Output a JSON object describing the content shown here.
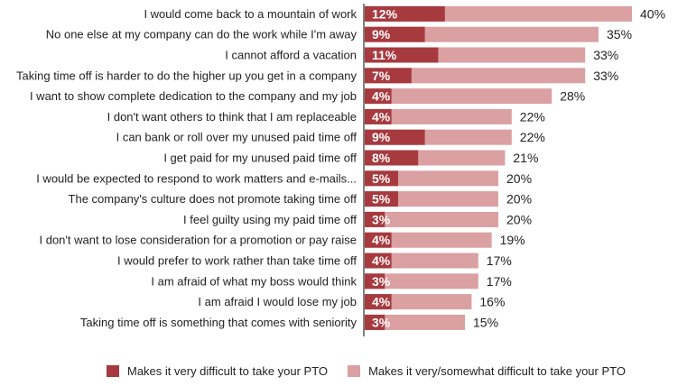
{
  "chart_data": {
    "type": "bar",
    "orientation": "horizontal",
    "stacked": "overlay",
    "categories": [
      "I would come back to a mountain of work",
      "No one else at my company can do the work while I'm away",
      "I cannot afford a vacation",
      "Taking time off is harder to do the higher up you get in a company",
      "I want to show complete dedication to the company and my job",
      "I don't want others to think that I am replaceable",
      "I can bank or roll over my unused paid time off",
      "I get paid for my unused paid time off",
      "I would be expected to respond to work matters and e-mails...",
      "The company's culture does not promote taking time off",
      "I feel guilty using my paid time off",
      "I don't want to lose consideration for a promotion or pay raise",
      "I would prefer to work rather than take time off",
      "I am afraid of what my boss would think",
      "I am afraid I would lose my job",
      "Taking time off is something that comes with seniority"
    ],
    "series": [
      {
        "name": "Makes it very difficult to take your PTO",
        "values": [
          12,
          9,
          11,
          7,
          4,
          4,
          9,
          8,
          5,
          5,
          3,
          4,
          4,
          3,
          4,
          3
        ],
        "labels": [
          "12%",
          "9%",
          "11%",
          "7%",
          "4%",
          "4%",
          "9%",
          "8%",
          "5%",
          "5%",
          "3%",
          "4%",
          "4%",
          "3%",
          "4%",
          "3%"
        ],
        "color": "#a63a3f"
      },
      {
        "name": "Makes it very/somewhat difficult to take your PTO",
        "values": [
          40,
          35,
          33,
          33,
          28,
          22,
          22,
          21,
          20,
          20,
          20,
          19,
          17,
          17,
          16,
          15
        ],
        "labels": [
          "40%",
          "35%",
          "33%",
          "33%",
          "28%",
          "22%",
          "22%",
          "21%",
          "20%",
          "20%",
          "20%",
          "19%",
          "17%",
          "17%",
          "16%",
          "15%"
        ],
        "color": "#dba0a2"
      }
    ],
    "xlim": [
      0,
      40
    ],
    "grid": false,
    "legend": "bottom"
  },
  "colors": {
    "axis": "#000000",
    "inner_label": "#ffffff",
    "text": "#222222"
  }
}
